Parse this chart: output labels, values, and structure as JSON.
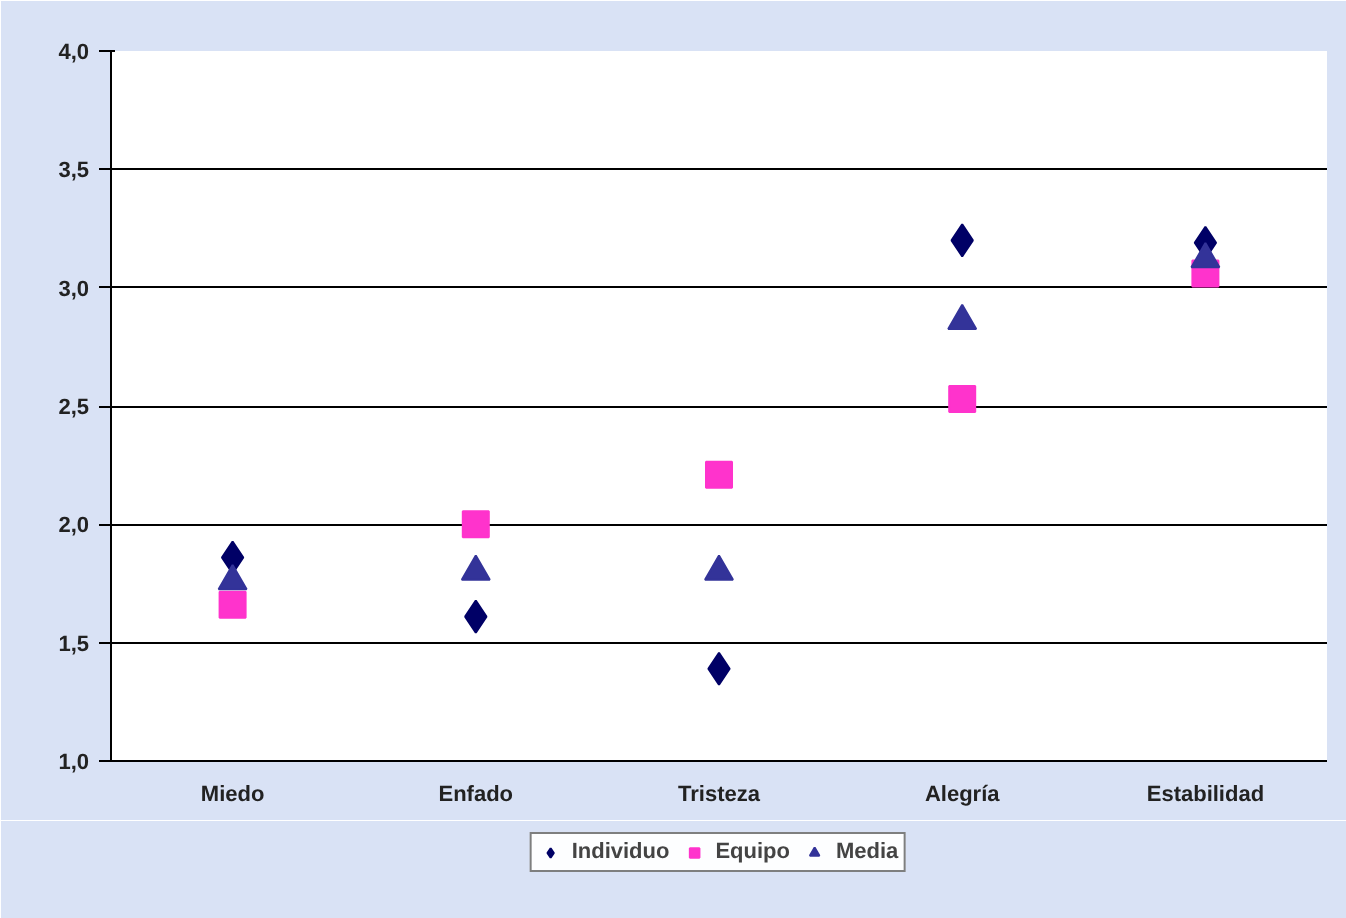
{
  "chart_data": {
    "type": "scatter",
    "categories": [
      "Miedo",
      "Enfado",
      "Tristeza",
      "Alegría",
      "Estabilidad"
    ],
    "series": [
      {
        "name": "Individuo",
        "color": "#000066",
        "marker": "diamond",
        "values": [
          1.86,
          1.61,
          1.39,
          3.2,
          3.19
        ]
      },
      {
        "name": "Equipo",
        "color": "#ff33cc",
        "marker": "square",
        "values": [
          1.66,
          2.0,
          2.21,
          2.53,
          3.06
        ]
      },
      {
        "name": "Media",
        "color": "#333399",
        "marker": "triangle",
        "values": [
          1.76,
          1.8,
          1.8,
          2.86,
          3.12
        ]
      }
    ],
    "ylim": [
      1.0,
      4.0
    ],
    "yticks": [
      {
        "value": 1.0,
        "label": "1,0"
      },
      {
        "value": 1.5,
        "label": "1,5"
      },
      {
        "value": 2.0,
        "label": "2,0"
      },
      {
        "value": 2.5,
        "label": "2,5"
      },
      {
        "value": 3.0,
        "label": "3,0"
      },
      {
        "value": 3.5,
        "label": "3,5"
      },
      {
        "value": 4.0,
        "label": "4,0"
      }
    ],
    "grid": "y",
    "legend": "bottom"
  }
}
